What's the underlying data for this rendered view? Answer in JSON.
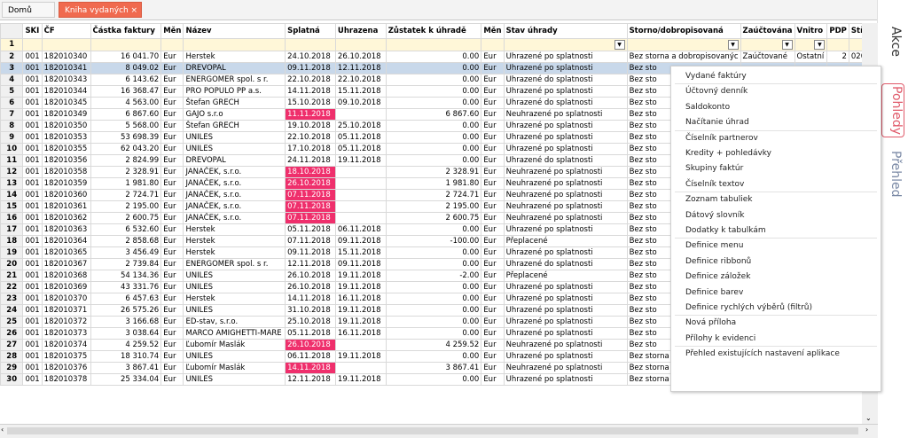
{
  "tabs": [
    {
      "label": "Domů"
    },
    {
      "label": "Kniha vydaných faktúr",
      "close": "×"
    }
  ],
  "side_tabs": [
    "Akce",
    "Pohledy",
    "Přehled"
  ],
  "columns": [
    "SKI",
    "ČF",
    "Částka faktury",
    "Měn",
    "Název",
    "Splatná",
    "Uhrazena",
    "Zůstatek k úhradě",
    "Měn",
    "Stav úhrady",
    "Storno/dobropisovaná",
    "Zaúčtována",
    "Vnitro",
    "PDP",
    "Střed"
  ],
  "rows": [
    [
      "2",
      "001",
      "182010340",
      "16 041.70",
      "Eur",
      "Herstek",
      "24.10.2018",
      "26.10.2018",
      "0.00",
      "Eur",
      "Uhrazené po splatnosti",
      "Bez storna a dobropisovanýc",
      "Zaúčtované",
      "Ostatní",
      "2",
      "02010"
    ],
    [
      "3",
      "001",
      "182010341",
      "8 049.02",
      "Eur",
      "DREVOPAL",
      "09.11.2018",
      "12.11.2018",
      "0.00",
      "Eur",
      "Uhrazené po splatnosti",
      "Bez sto",
      "",
      "",
      "",
      ""
    ],
    [
      "4",
      "001",
      "182010343",
      "6 143.62",
      "Eur",
      "ENERGOMER spol. s r.",
      "22.10.2018",
      "22.10.2018",
      "0.00",
      "Eur",
      "Uhrazené do splatnosti",
      "Bez sto",
      "",
      "",
      "",
      ""
    ],
    [
      "5",
      "001",
      "182010344",
      "16 368.47",
      "Eur",
      "PRO POPULO PP a.s.",
      "14.11.2018",
      "15.11.2018",
      "0.00",
      "Eur",
      "Uhrazené po splatnosti",
      "Bez sto",
      "",
      "",
      "",
      ""
    ],
    [
      "6",
      "001",
      "182010345",
      "4 563.00",
      "Eur",
      "Štefan GRECH",
      "15.10.2018",
      "09.10.2018",
      "0.00",
      "Eur",
      "Uhrazené do splatnosti",
      "Bez sto",
      "",
      "",
      "",
      ""
    ],
    [
      "7",
      "001",
      "182010349",
      "6 867.60",
      "Eur",
      "GAJO s.r.o",
      "11.11.2018",
      "",
      "6 867.60",
      "Eur",
      "Neuhrazené po splatnosti",
      "Bez sto",
      "",
      "",
      "",
      ""
    ],
    [
      "8",
      "001",
      "182010350",
      "5 568.00",
      "Eur",
      "Štefan GRECH",
      "19.10.2018",
      "25.10.2018",
      "0.00",
      "Eur",
      "Uhrazené po splatnosti",
      "Bez sto",
      "",
      "",
      "",
      ""
    ],
    [
      "9",
      "001",
      "182010353",
      "53 698.39",
      "Eur",
      "UNILES",
      "22.10.2018",
      "05.11.2018",
      "0.00",
      "Eur",
      "Uhrazené po splatnosti",
      "Bez sto",
      "",
      "",
      "",
      ""
    ],
    [
      "10",
      "001",
      "182010355",
      "62 043.20",
      "Eur",
      "UNILES",
      "17.10.2018",
      "05.11.2018",
      "0.00",
      "Eur",
      "Uhrazené po splatnosti",
      "Bez sto",
      "",
      "",
      "",
      ""
    ],
    [
      "11",
      "001",
      "182010356",
      "2 824.99",
      "Eur",
      "DREVOPAL",
      "24.11.2018",
      "19.11.2018",
      "0.00",
      "Eur",
      "Uhrazené do splatnosti",
      "Bez sto",
      "",
      "",
      "",
      ""
    ],
    [
      "12",
      "001",
      "182010358",
      "2 328.91",
      "Eur",
      "JANAČEK, s.r.o.",
      "18.10.2018",
      "",
      "2 328.91",
      "Eur",
      "Neuhrazené po splatnosti",
      "Bez sto",
      "",
      "",
      "",
      ""
    ],
    [
      "13",
      "001",
      "182010359",
      "1 981.80",
      "Eur",
      "JANAČEK, s.r.o.",
      "26.10.2018",
      "",
      "1 981.80",
      "Eur",
      "Neuhrazené po splatnosti",
      "Bez sto",
      "",
      "",
      "",
      ""
    ],
    [
      "14",
      "001",
      "182010360",
      "2 724.71",
      "Eur",
      "JANAČEK, s.r.o.",
      "07.11.2018",
      "",
      "2 724.71",
      "Eur",
      "Neuhrazené po splatnosti",
      "Bez sto",
      "",
      "",
      "",
      ""
    ],
    [
      "15",
      "001",
      "182010361",
      "2 195.00",
      "Eur",
      "JANAČEK, s.r.o.",
      "07.11.2018",
      "",
      "2 195.00",
      "Eur",
      "Neuhrazené po splatnosti",
      "Bez sto",
      "",
      "",
      "",
      ""
    ],
    [
      "16",
      "001",
      "182010362",
      "2 600.75",
      "Eur",
      "JANAČEK, s.r.o.",
      "07.11.2018",
      "",
      "2 600.75",
      "Eur",
      "Neuhrazené po splatnosti",
      "Bez sto",
      "",
      "",
      "",
      ""
    ],
    [
      "17",
      "001",
      "182010363",
      "6 532.60",
      "Eur",
      "Herstek",
      "05.11.2018",
      "06.11.2018",
      "0.00",
      "Eur",
      "Uhrazené po splatnosti",
      "Bez sto",
      "",
      "",
      "",
      ""
    ],
    [
      "18",
      "001",
      "182010364",
      "2 858.68",
      "Eur",
      "Herstek",
      "07.11.2018",
      "09.11.2018",
      "-100.00",
      "Eur",
      "Přeplacené",
      "Bez sto",
      "",
      "",
      "",
      ""
    ],
    [
      "19",
      "001",
      "182010365",
      "3 456.49",
      "Eur",
      "Herstek",
      "09.11.2018",
      "15.11.2018",
      "0.00",
      "Eur",
      "Uhrazené po splatnosti",
      "Bez sto",
      "",
      "",
      "",
      ""
    ],
    [
      "20",
      "001",
      "182010367",
      "2 739.84",
      "Eur",
      "ENERGOMER spol. s r.",
      "12.11.2018",
      "09.11.2018",
      "0.00",
      "Eur",
      "Uhrazené do splatnosti",
      "Bez sto",
      "",
      "",
      "",
      ""
    ],
    [
      "21",
      "001",
      "182010368",
      "54 134.36",
      "Eur",
      "UNILES",
      "26.10.2018",
      "19.11.2018",
      "-2.00",
      "Eur",
      "Přeplacené",
      "Bez sto",
      "",
      "",
      "",
      ""
    ],
    [
      "22",
      "001",
      "182010369",
      "43 331.76",
      "Eur",
      "UNILES",
      "26.10.2018",
      "19.11.2018",
      "0.00",
      "Eur",
      "Uhrazené po splatnosti",
      "Bez sto",
      "",
      "",
      "",
      ""
    ],
    [
      "23",
      "001",
      "182010370",
      "6 457.63",
      "Eur",
      "Herstek",
      "14.11.2018",
      "16.11.2018",
      "0.00",
      "Eur",
      "Uhrazené po splatnosti",
      "Bez sto",
      "",
      "",
      "",
      ""
    ],
    [
      "24",
      "001",
      "182010371",
      "26 575.26",
      "Eur",
      "UNILES",
      "31.10.2018",
      "19.11.2018",
      "0.00",
      "Eur",
      "Uhrazené po splatnosti",
      "Bez sto",
      "",
      "",
      "",
      ""
    ],
    [
      "25",
      "001",
      "182010372",
      "3 166.68",
      "Eur",
      "ED-stav, s.r.o.",
      "25.10.2018",
      "19.11.2018",
      "0.00",
      "Eur",
      "Uhrazené po splatnosti",
      "Bez sto",
      "",
      "",
      "",
      ""
    ],
    [
      "26",
      "001",
      "182010373",
      "3 038.64",
      "Eur",
      "MARCO AMIGHETTI-MARE",
      "05.11.2018",
      "16.11.2018",
      "0.00",
      "Eur",
      "Uhrazené po splatnosti",
      "Bez sto",
      "",
      "",
      "",
      ""
    ],
    [
      "27",
      "001",
      "182010374",
      "4 259.52",
      "Eur",
      "Ľubomír Maslák",
      "26.10.2018",
      "",
      "4 259.52",
      "Eur",
      "Neuhrazené po splatnosti",
      "Bez sto",
      "",
      "",
      "",
      ""
    ],
    [
      "28",
      "001",
      "182010375",
      "18 310.74",
      "Eur",
      "UNILES",
      "06.11.2018",
      "19.11.2018",
      "0.00",
      "Eur",
      "Uhrazené po splatnosti",
      "Bez storna a dobropisovanýc",
      "Zaúčtované",
      "Ostatní",
      "12",
      "0203"
    ],
    [
      "29",
      "001",
      "182010376",
      "3 867.41",
      "Eur",
      "Ľubomír Maslák",
      "14.11.2018",
      "",
      "3 867.41",
      "Eur",
      "Neuhrazené po splatnosti",
      "Bez storna a dobropisovanýc",
      "Zaúčtované",
      "Ostatní",
      "13",
      "0203"
    ],
    [
      "30",
      "001",
      "182010378",
      "25 334.04",
      "Eur",
      "UNILES",
      "12.11.2018",
      "19.11.2018",
      "0.00",
      "Eur",
      "Uhrazené po splatnosti",
      "Bez storna a dobropisovanýc",
      "Zaúčtované",
      "Ostatní",
      "10",
      "0203"
    ]
  ],
  "menu_items": [
    "Vydané faktúry",
    "Účtovný denník",
    "Saldokonto",
    "Načítanie úhrad",
    "Číselník partnerov",
    "Kredity + pohledávky",
    "Skupiny faktúr",
    "Číselník textov",
    "Zoznam tabuliek",
    "Dátový slovník",
    "Dodatky k tabulkám",
    "Definice menu",
    "Definice ribbonů",
    "Definice záložek",
    "Definice barev",
    "Definice rychlých výběrů (filtrů)",
    "Nová příloha",
    "Přílohy k evidenci",
    "Přehled existujících nastavení aplikace"
  ],
  "icons": [
    "close-icon",
    "dropdown-icon",
    "scroll-left-icon",
    "scroll-right-icon",
    "scroll-down-icon"
  ]
}
